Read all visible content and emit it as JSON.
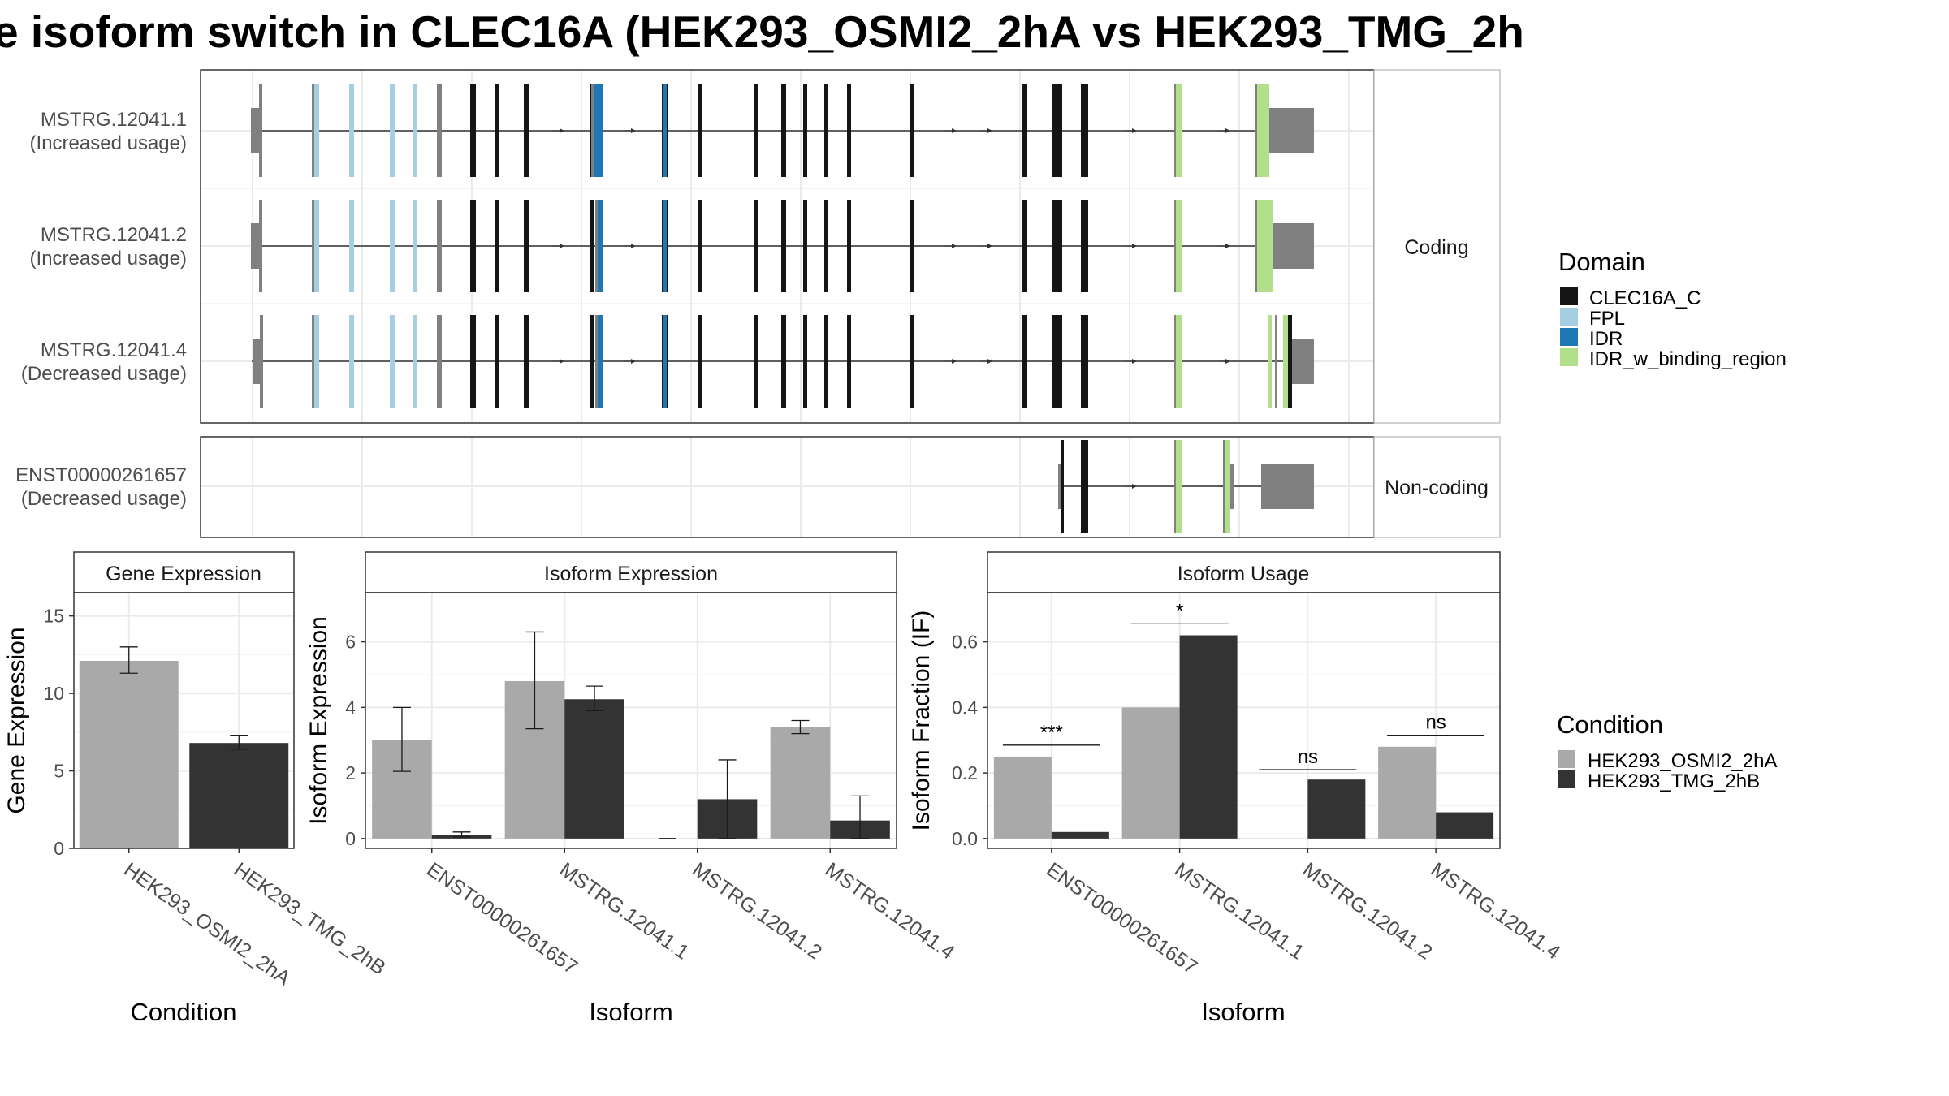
{
  "title": "e isoform switch in CLEC16A (HEK293_OSMI2_2hA vs HEK293_TMG_2h",
  "structure": {
    "panels": [
      {
        "label": "Coding",
        "isoforms": [
          {
            "id": "MSTRG.12041.1",
            "usage": "(Increased usage)"
          },
          {
            "id": "MSTRG.12041.2",
            "usage": "(Increased usage)"
          },
          {
            "id": "MSTRG.12041.4",
            "usage": "(Decreased usage)"
          }
        ]
      },
      {
        "label": "Non-coding",
        "isoforms": [
          {
            "id": "ENST00000261657",
            "usage": "(Decreased usage)"
          }
        ]
      }
    ],
    "domain_legend": {
      "title": "Domain",
      "items": [
        {
          "label": "CLEC16A_C",
          "color": "#151515"
        },
        {
          "label": "FPL",
          "color": "#a6cee3"
        },
        {
          "label": "IDR",
          "color": "#1f78b4"
        },
        {
          "label": "IDR_w_binding_region",
          "color": "#b2df8a"
        }
      ]
    },
    "utr_color": "#808080"
  },
  "condition_legend": {
    "title": "Condition",
    "items": [
      {
        "label": "HEK293_OSMI2_2hA",
        "color": "#a9a9a9"
      },
      {
        "label": "HEK293_TMG_2hB",
        "color": "#333333"
      }
    ]
  },
  "chart_data": [
    {
      "type": "bar",
      "title": "Gene Expression",
      "xlabel": "Condition",
      "ylabel": "Gene Expression",
      "categories": [
        "HEK293_OSMI2_2hA",
        "HEK293_TMG_2hB"
      ],
      "values": [
        12.1,
        6.8
      ],
      "errors": [
        [
          11.3,
          13.0
        ],
        [
          6.4,
          7.3
        ]
      ],
      "ylim": [
        0,
        16.5
      ],
      "yticks": [
        0,
        5,
        10,
        15
      ]
    },
    {
      "type": "bar",
      "title": "Isoform Expression",
      "xlabel": "Isoform",
      "ylabel": "Isoform Expression",
      "categories": [
        "ENST00000261657",
        "MSTRG.12041.1",
        "MSTRG.12041.2",
        "MSTRG.12041.4"
      ],
      "series": [
        {
          "name": "HEK293_OSMI2_2hA",
          "values": [
            3.0,
            4.8,
            0.0,
            3.4
          ],
          "errors": [
            [
              2.05,
              4.0
            ],
            [
              3.35,
              6.3
            ],
            [
              0.0,
              0.0
            ],
            [
              3.2,
              3.6
            ]
          ]
        },
        {
          "name": "HEK293_TMG_2hB",
          "values": [
            0.12,
            4.25,
            1.2,
            0.55
          ],
          "errors": [
            [
              0.05,
              0.2
            ],
            [
              3.9,
              4.65
            ],
            [
              0.0,
              2.4
            ],
            [
              0.0,
              1.3
            ]
          ]
        }
      ],
      "ylim": [
        -0.3,
        7.5
      ],
      "yticks": [
        0,
        2,
        4,
        6
      ]
    },
    {
      "type": "bar",
      "title": "Isoform Usage",
      "xlabel": "Isoform",
      "ylabel": "Isoform Fraction (IF)",
      "categories": [
        "ENST00000261657",
        "MSTRG.12041.1",
        "MSTRG.12041.2",
        "MSTRG.12041.4"
      ],
      "series": [
        {
          "name": "HEK293_OSMI2_2hA",
          "values": [
            0.25,
            0.4,
            0.0,
            0.28
          ]
        },
        {
          "name": "HEK293_TMG_2hB",
          "values": [
            0.02,
            0.62,
            0.18,
            0.08
          ]
        }
      ],
      "significance": [
        {
          "category": "ENST00000261657",
          "label": "***",
          "y": 0.285
        },
        {
          "category": "MSTRG.12041.1",
          "label": "*",
          "y": 0.655
        },
        {
          "category": "MSTRG.12041.2",
          "label": "ns",
          "y": 0.21
        },
        {
          "category": "MSTRG.12041.4",
          "label": "ns",
          "y": 0.315
        }
      ],
      "ylim": [
        -0.03,
        0.75
      ],
      "yticks": [
        "0.0",
        "0.2",
        "0.4",
        "0.6"
      ]
    }
  ]
}
